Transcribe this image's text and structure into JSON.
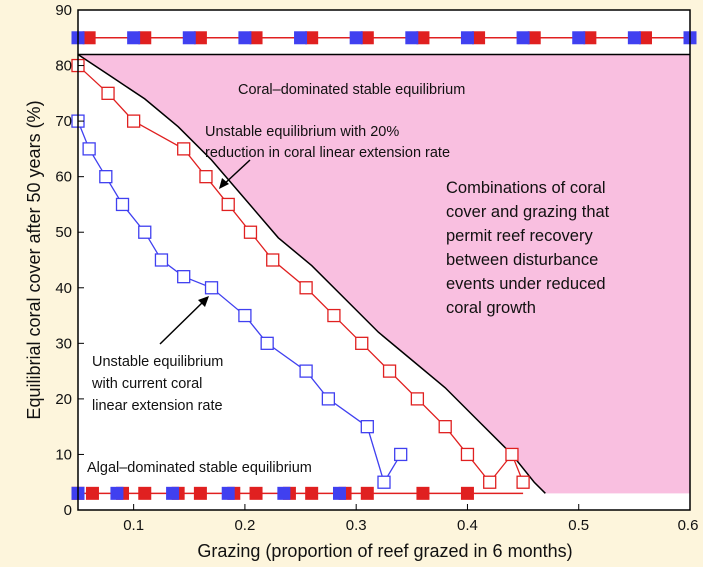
{
  "chart_data": {
    "type": "line",
    "title": "",
    "xlabel": "Grazing (proportion of reef grazed in 6 months)",
    "ylabel": "Equilibrial coral cover after 50 years (%)",
    "xlim": [
      0.05,
      0.6
    ],
    "ylim": [
      0,
      90
    ],
    "x_ticks": [
      "0.1",
      "0.2",
      "0.3",
      "0.4",
      "0.5",
      "0.6"
    ],
    "x_tick_values": [
      0.1,
      0.2,
      0.3,
      0.4,
      0.5,
      0.6
    ],
    "y_ticks": [
      "0",
      "10",
      "20",
      "30",
      "40",
      "50",
      "60",
      "70",
      "80",
      "90"
    ],
    "y_tick_values": [
      0,
      10,
      20,
      30,
      40,
      50,
      60,
      70,
      80,
      90
    ],
    "grid": false,
    "colors": {
      "blue": "#4040f0",
      "red": "#e02020",
      "pink_region": "#f9bfe0",
      "boundary": "#000000"
    },
    "series": [
      {
        "color": "#4040f0",
        "marker": "open-square",
        "x": [
          0.05,
          0.06,
          0.075,
          0.09,
          0.11,
          0.125,
          0.145,
          0.17,
          0.2,
          0.22,
          0.255,
          0.275,
          0.31,
          0.325,
          0.34
        ],
        "y": [
          70,
          65,
          60,
          55,
          50,
          45,
          42,
          40,
          35,
          30,
          25,
          20,
          15,
          5,
          10
        ]
      },
      {
        "color": "#e02020",
        "marker": "open-square",
        "x": [
          0.05,
          0.077,
          0.1,
          0.145,
          0.165,
          0.185,
          0.205,
          0.225,
          0.255,
          0.28,
          0.305,
          0.33,
          0.355,
          0.38,
          0.4,
          0.42,
          0.44,
          0.45
        ],
        "y": [
          80,
          75,
          70,
          65,
          60,
          55,
          50,
          45,
          40,
          35,
          30,
          25,
          20,
          15,
          10,
          5,
          10,
          5
        ]
      },
      {
        "color": "#e02020",
        "marker": "filled-square",
        "role": "bottom-stable-equilibrium",
        "x": [
          0.05,
          0.063,
          0.09,
          0.11,
          0.14,
          0.16,
          0.19,
          0.21,
          0.24,
          0.26,
          0.29,
          0.31,
          0.36,
          0.4
        ],
        "y": [
          3,
          3,
          3,
          3,
          3,
          3,
          3,
          3,
          3,
          3,
          3,
          3,
          3,
          3
        ]
      },
      {
        "color": "#4040f0",
        "marker": "filled-square",
        "role": "bottom-stable-equilibrium",
        "x": [
          0.05,
          0.085,
          0.135,
          0.185,
          0.235,
          0.285
        ],
        "y": [
          3,
          3,
          3,
          3,
          3,
          3
        ]
      },
      {
        "color": "#e02020",
        "marker": "filled-square",
        "role": "top-stable-equilibrium",
        "x": [
          0.06,
          0.11,
          0.16,
          0.21,
          0.26,
          0.31,
          0.36,
          0.41,
          0.46,
          0.51,
          0.56
        ],
        "y": [
          85,
          85,
          85,
          85,
          85,
          85,
          85,
          85,
          85,
          85,
          85
        ]
      },
      {
        "color": "#4040f0",
        "marker": "filled-square",
        "role": "top-stable-equilibrium",
        "x": [
          0.05,
          0.1,
          0.15,
          0.2,
          0.25,
          0.3,
          0.35,
          0.4,
          0.45,
          0.5,
          0.55,
          0.6
        ],
        "y": [
          85,
          85,
          85,
          85,
          85,
          85,
          85,
          85,
          85,
          85,
          85,
          85
        ]
      }
    ],
    "region_boundary": {
      "x": [
        0.05,
        0.08,
        0.11,
        0.14,
        0.17,
        0.2,
        0.23,
        0.26,
        0.29,
        0.32,
        0.35,
        0.38,
        0.41,
        0.44,
        0.46,
        0.47,
        0.47
      ],
      "y": [
        82,
        78,
        74,
        69,
        63,
        56,
        49,
        44,
        38,
        32,
        27,
        22,
        16,
        10,
        5,
        3,
        3
      ]
    },
    "region_ceiling": 82,
    "region_floor": 3,
    "annotations": {
      "coral_stable": "Coral–dominated stable equilibrium",
      "unstable_20_line1": "Unstable equilibrium with 20%",
      "unstable_20_line2": "reduction in coral linear extension rate",
      "combo_line1": "Combinations of coral",
      "combo_line2": "cover and grazing that",
      "combo_line3": "permit reef recovery",
      "combo_line4": "between disturbance",
      "combo_line5": "events under reduced",
      "combo_line6": "coral growth",
      "unstable_cur_line1": "Unstable equilibrium",
      "unstable_cur_line2": "with current coral",
      "unstable_cur_line3": "linear extension rate",
      "algal_stable": "Algal–dominated stable equilibrium"
    }
  }
}
